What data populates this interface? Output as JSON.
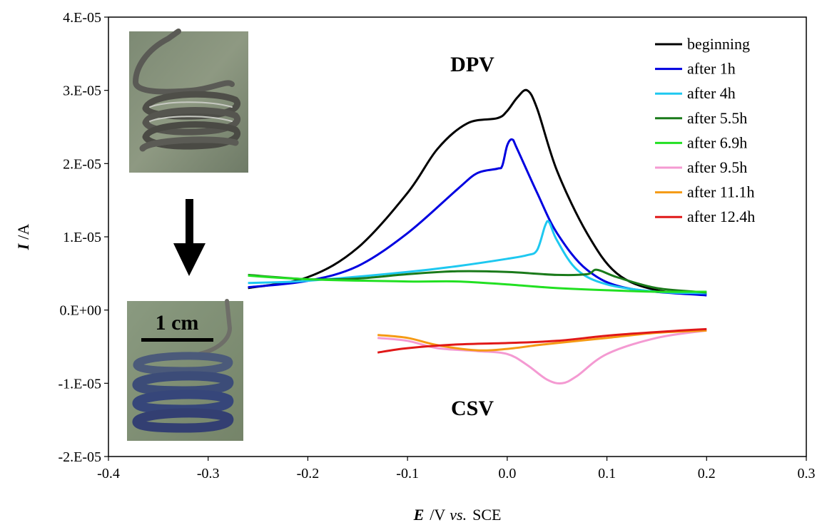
{
  "chart_data": {
    "type": "line",
    "xlabel_var": "E",
    "xlabel_unit": "/V",
    "xlabel_vs": "vs.",
    "xlabel_ref": "SCE",
    "ylabel_var": "I",
    "ylabel_unit": "/A",
    "xlim": [
      -0.4,
      0.3
    ],
    "ylim": [
      -2e-05,
      4e-05
    ],
    "x_ticks": [
      "-0.4",
      "-0.3",
      "-0.2",
      "-0.1",
      "0.0",
      "0.1",
      "0.2",
      "0.3"
    ],
    "y_ticks": [
      "4.E-05",
      "3.E-05",
      "2.E-05",
      "1.E-05",
      "0.E+00",
      "-1.E-05",
      "-2.E-05"
    ],
    "grid": false,
    "legend_position": "top-right",
    "annotations": {
      "dpv": "DPV",
      "csv": "CSV",
      "scale_bar": "1 cm"
    },
    "inset_photos": [
      "coil-before-photo",
      "coil-after-photo"
    ],
    "series": [
      {
        "name": "beginning",
        "color": "#000000",
        "points": [
          [
            -0.26,
            3e-06
          ],
          [
            -0.2,
            4.5e-06
          ],
          [
            -0.15,
            8.5e-06
          ],
          [
            -0.1,
            1.6e-05
          ],
          [
            -0.07,
            2.2e-05
          ],
          [
            -0.04,
            2.55e-05
          ],
          [
            -0.01,
            2.62e-05
          ],
          [
            0.0,
            2.72e-05
          ],
          [
            0.01,
            2.9e-05
          ],
          [
            0.02,
            3e-05
          ],
          [
            0.03,
            2.75e-05
          ],
          [
            0.05,
            1.9e-05
          ],
          [
            0.08,
            1.05e-05
          ],
          [
            0.11,
            5e-06
          ],
          [
            0.15,
            2.7e-06
          ],
          [
            0.2,
            2.2e-06
          ]
        ]
      },
      {
        "name": "after 1h",
        "color": "#0000e0",
        "points": [
          [
            -0.26,
            3.1e-06
          ],
          [
            -0.2,
            4e-06
          ],
          [
            -0.15,
            6e-06
          ],
          [
            -0.1,
            1.05e-05
          ],
          [
            -0.05,
            1.65e-05
          ],
          [
            -0.03,
            1.87e-05
          ],
          [
            -0.01,
            1.93e-05
          ],
          [
            -0.005,
            1.97e-05
          ],
          [
            0.0,
            2.25e-05
          ],
          [
            0.005,
            2.33e-05
          ],
          [
            0.01,
            2.2e-05
          ],
          [
            0.03,
            1.6e-05
          ],
          [
            0.05,
            1.05e-05
          ],
          [
            0.08,
            5.5e-06
          ],
          [
            0.12,
            3e-06
          ],
          [
            0.2,
            2e-06
          ]
        ]
      },
      {
        "name": "after 4h",
        "color": "#1ec8f0",
        "points": [
          [
            -0.26,
            3.7e-06
          ],
          [
            -0.2,
            4e-06
          ],
          [
            -0.1,
            5.2e-06
          ],
          [
            -0.05,
            6e-06
          ],
          [
            0.0,
            7e-06
          ],
          [
            0.02,
            7.5e-06
          ],
          [
            0.03,
            8.2e-06
          ],
          [
            0.038,
            1.15e-05
          ],
          [
            0.042,
            1.2e-05
          ],
          [
            0.05,
            9.5e-06
          ],
          [
            0.07,
            5.5e-06
          ],
          [
            0.1,
            3.5e-06
          ],
          [
            0.15,
            2.5e-06
          ],
          [
            0.2,
            2.3e-06
          ]
        ]
      },
      {
        "name": "after 5.5h",
        "color": "#1a7a1a",
        "points": [
          [
            -0.26,
            4.8e-06
          ],
          [
            -0.2,
            4.2e-06
          ],
          [
            -0.15,
            4.3e-06
          ],
          [
            -0.1,
            4.9e-06
          ],
          [
            -0.05,
            5.3e-06
          ],
          [
            0.0,
            5.2e-06
          ],
          [
            0.05,
            4.8e-06
          ],
          [
            0.08,
            4.9e-06
          ],
          [
            0.09,
            5.5e-06
          ],
          [
            0.11,
            4.5e-06
          ],
          [
            0.15,
            3e-06
          ],
          [
            0.2,
            2.4e-06
          ]
        ]
      },
      {
        "name": "after 6.9h",
        "color": "#22e022",
        "points": [
          [
            -0.26,
            4.7e-06
          ],
          [
            -0.2,
            4.2e-06
          ],
          [
            -0.1,
            3.9e-06
          ],
          [
            -0.05,
            3.9e-06
          ],
          [
            0.0,
            3.5e-06
          ],
          [
            0.05,
            3e-06
          ],
          [
            0.1,
            2.7e-06
          ],
          [
            0.15,
            2.5e-06
          ],
          [
            0.2,
            2.5e-06
          ]
        ]
      },
      {
        "name": "after 9.5h",
        "color": "#f49ad2",
        "points": [
          [
            -0.13,
            -3.8e-06
          ],
          [
            -0.1,
            -4.2e-06
          ],
          [
            -0.07,
            -5.2e-06
          ],
          [
            -0.03,
            -5.6e-06
          ],
          [
            0.0,
            -6e-06
          ],
          [
            0.02,
            -7.5e-06
          ],
          [
            0.04,
            -9.5e-06
          ],
          [
            0.055,
            -1e-05
          ],
          [
            0.07,
            -9e-06
          ],
          [
            0.1,
            -6e-06
          ],
          [
            0.15,
            -3.8e-06
          ],
          [
            0.2,
            -2.8e-06
          ]
        ]
      },
      {
        "name": "after 11.1h",
        "color": "#f59a14",
        "points": [
          [
            -0.13,
            -3.4e-06
          ],
          [
            -0.1,
            -3.8e-06
          ],
          [
            -0.07,
            -4.8e-06
          ],
          [
            -0.03,
            -5.5e-06
          ],
          [
            0.0,
            -5.3e-06
          ],
          [
            0.03,
            -4.8e-06
          ],
          [
            0.05,
            -4.5e-06
          ],
          [
            0.1,
            -3.8e-06
          ],
          [
            0.15,
            -3.1e-06
          ],
          [
            0.2,
            -2.8e-06
          ]
        ]
      },
      {
        "name": "after 12.4h",
        "color": "#e01818",
        "points": [
          [
            -0.13,
            -5.8e-06
          ],
          [
            -0.1,
            -5.2e-06
          ],
          [
            -0.05,
            -4.7e-06
          ],
          [
            0.0,
            -4.5e-06
          ],
          [
            0.05,
            -4.2e-06
          ],
          [
            0.1,
            -3.5e-06
          ],
          [
            0.15,
            -3e-06
          ],
          [
            0.2,
            -2.6e-06
          ]
        ]
      }
    ]
  }
}
